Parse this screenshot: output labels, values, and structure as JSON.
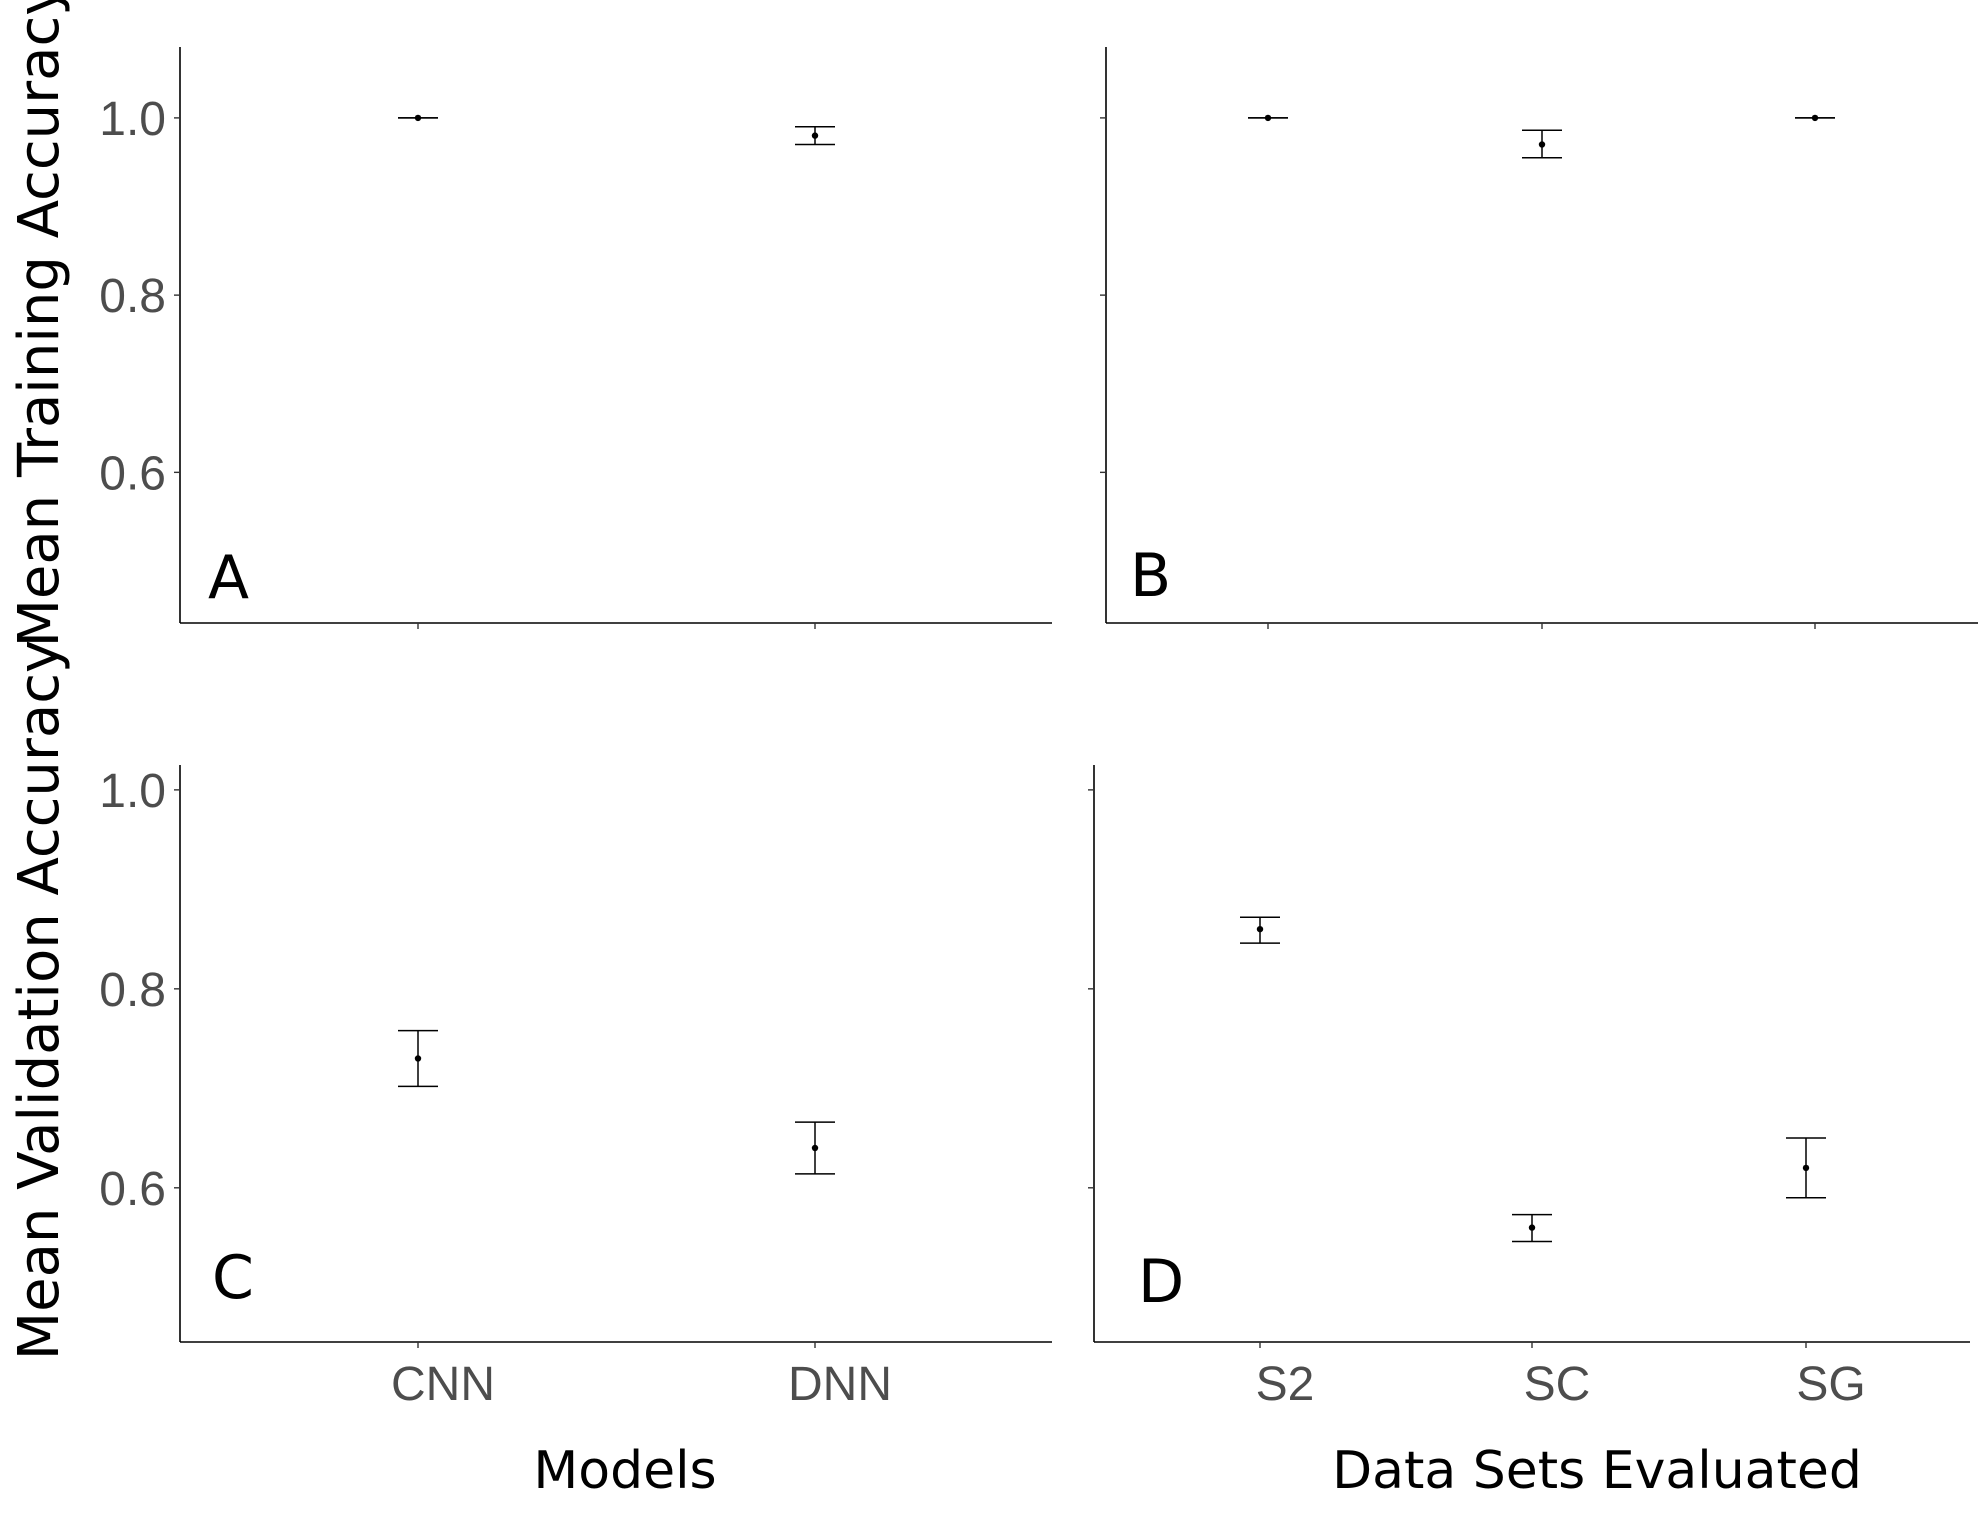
{
  "figure": {
    "y_axis_labels": {
      "top": "Mean Training Accuracy",
      "bottom": "Mean Validation Accuracy"
    },
    "x_axis_labels": {
      "left": "Models",
      "right": "Data Sets Evaluated"
    },
    "colors": {
      "points": "#000000",
      "tick_text": "#4d4d4d",
      "axis": "#000000"
    }
  },
  "chart_data": [
    {
      "panel": "A",
      "type": "scatter",
      "error_bars": true,
      "categories": [
        "CNN",
        "DNN"
      ],
      "values": [
        1.0,
        0.98
      ],
      "error_low": [
        1.0,
        0.97
      ],
      "error_high": [
        1.0,
        0.99
      ],
      "ylim": [
        0.43,
        1.08
      ],
      "yticks": [
        "0.6",
        "0.8",
        "1.0"
      ],
      "show_x_tick_labels": false,
      "show_y_tick_labels": true,
      "ylabel": "Mean Training Accuracy",
      "xlabel": ""
    },
    {
      "panel": "B",
      "type": "scatter",
      "error_bars": true,
      "categories": [
        "S2",
        "SC",
        "SG"
      ],
      "values": [
        1.0,
        0.97,
        1.0
      ],
      "error_low": [
        1.0,
        0.955,
        1.0
      ],
      "error_high": [
        1.0,
        0.986,
        1.0
      ],
      "ylim": [
        0.43,
        1.08
      ],
      "yticks": [
        "0.6",
        "0.8",
        "1.0"
      ],
      "show_x_tick_labels": false,
      "show_y_tick_labels": false,
      "ylabel": "",
      "xlabel": ""
    },
    {
      "panel": "C",
      "type": "scatter",
      "error_bars": true,
      "categories": [
        "CNN",
        "DNN"
      ],
      "values": [
        0.73,
        0.64
      ],
      "error_low": [
        0.702,
        0.614
      ],
      "error_high": [
        0.758,
        0.666
      ],
      "ylim": [
        0.445,
        1.025
      ],
      "yticks": [
        "0.6",
        "0.8",
        "1.0"
      ],
      "show_x_tick_labels": true,
      "show_y_tick_labels": true,
      "ylabel": "Mean Validation Accuracy",
      "xlabel": "Models"
    },
    {
      "panel": "D",
      "type": "scatter",
      "error_bars": true,
      "categories": [
        "S2",
        "SC",
        "SG"
      ],
      "values": [
        0.86,
        0.56,
        0.62
      ],
      "error_low": [
        0.846,
        0.546,
        0.59
      ],
      "error_high": [
        0.872,
        0.573,
        0.65
      ],
      "ylim": [
        0.445,
        1.025
      ],
      "yticks": [
        "0.6",
        "0.8",
        "1.0"
      ],
      "show_x_tick_labels": true,
      "show_y_tick_labels": false,
      "ylabel": "",
      "xlabel": "Data Sets Evaluated"
    }
  ]
}
